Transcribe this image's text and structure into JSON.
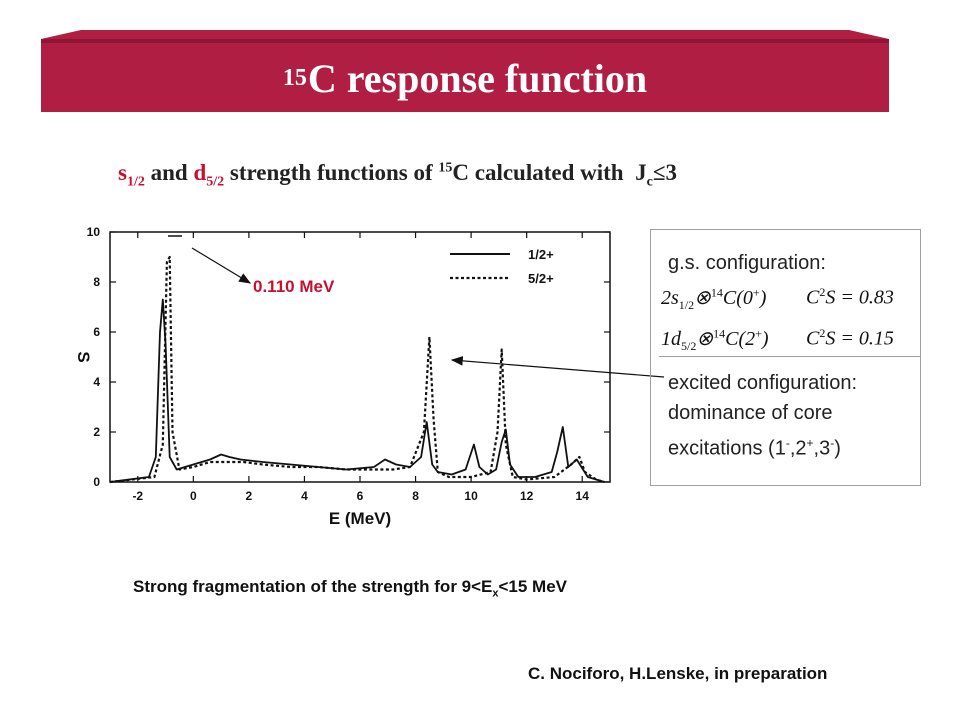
{
  "banner": {
    "superscript": "15",
    "title": "C response function",
    "color": "#b01e43"
  },
  "subtitle": {
    "part1": "s",
    "sub1": "1/2",
    "part2": " and ",
    "part3": "d",
    "sub3": "5/2",
    "part4": " strength functions of ",
    "sup4": "15",
    "part5": "C calculated with  J",
    "sub5": "c",
    "part6": "≤3"
  },
  "annotation": {
    "energy_label": "0.110 MeV"
  },
  "config_box": {
    "gs_heading": "g.s. configuration:",
    "eq1": {
      "lhs": "2s",
      "sub": "1/2",
      "otimes": "⊗",
      "sup": "14",
      "core": "C(0",
      "coresup": "+",
      "close": ")",
      "cs": "C",
      "cssup": "2",
      "csrest": "S = 0.83"
    },
    "eq2": {
      "lhs": "1d",
      "sub": "5/2",
      "otimes": "⊗",
      "sup": "14",
      "core": "C(2",
      "coresup": "+",
      "close": ")",
      "cs": "C",
      "cssup": "2",
      "csrest": "S = 0.15"
    },
    "excited_line1": "excited configuration:",
    "excited_line2": "dominance of core",
    "excited_line3a": "excitations (1",
    "excited_sup1": "-",
    "excited_mid1": ",2",
    "excited_sup2": "+",
    "excited_mid2": ",3",
    "excited_sup3": "-",
    "excited_end": ")"
  },
  "footer": {
    "fragmentation_a": "Strong fragmentation of the strength for 9<E",
    "fragmentation_sub": "x",
    "fragmentation_b": "<15 MeV",
    "credit": "C. Nociforo, H.Lenske, in preparation"
  },
  "chart_data": {
    "type": "line",
    "xlabel": "E (MeV)",
    "ylabel": "S",
    "xlim": [
      -3,
      15
    ],
    "ylim": [
      0,
      10
    ],
    "xticks": [
      -2,
      0,
      2,
      4,
      6,
      8,
      10,
      12,
      14
    ],
    "yticks": [
      0,
      2,
      4,
      6,
      8,
      10
    ],
    "series": [
      {
        "name": "1/2+",
        "style": "solid",
        "x": [
          -3.0,
          -1.6,
          -1.35,
          -1.2,
          -1.1,
          -1.0,
          -0.85,
          -0.6,
          0.0,
          0.6,
          1.0,
          1.3,
          1.7,
          2.5,
          3.5,
          4.5,
          5.5,
          6.5,
          6.9,
          7.3,
          7.8,
          8.2,
          8.4,
          8.6,
          8.8,
          9.3,
          9.8,
          10.1,
          10.3,
          10.6,
          10.9,
          11.1,
          11.25,
          11.4,
          11.7,
          12.3,
          12.9,
          13.1,
          13.3,
          13.5,
          13.8,
          14.2,
          14.8
        ],
        "y": [
          0,
          0.2,
          1.0,
          6.0,
          7.3,
          5.5,
          1.0,
          0.5,
          0.7,
          0.9,
          1.1,
          1.0,
          0.9,
          0.8,
          0.7,
          0.6,
          0.5,
          0.6,
          0.9,
          0.7,
          0.6,
          1.0,
          2.4,
          0.7,
          0.4,
          0.3,
          0.5,
          1.5,
          0.6,
          0.3,
          0.5,
          1.6,
          2.1,
          0.7,
          0.2,
          0.2,
          0.4,
          1.2,
          2.2,
          0.6,
          0.9,
          0.2,
          0
        ]
      },
      {
        "name": "5/2+",
        "style": "dotted",
        "x": [
          -3.0,
          -1.4,
          -1.1,
          -0.95,
          -0.85,
          -0.75,
          -0.5,
          0.0,
          0.6,
          1.2,
          1.8,
          2.5,
          3.5,
          4.5,
          5.5,
          6.5,
          7.2,
          7.8,
          8.3,
          8.5,
          8.65,
          8.8,
          9.2,
          10.0,
          10.7,
          10.95,
          11.1,
          11.25,
          11.5,
          12.0,
          13.0,
          13.6,
          13.9,
          14.1,
          14.5,
          14.8
        ],
        "y": [
          0,
          0.2,
          1.5,
          8.8,
          9.0,
          2.0,
          0.5,
          0.6,
          0.8,
          0.8,
          0.8,
          0.7,
          0.6,
          0.6,
          0.5,
          0.5,
          0.5,
          0.6,
          2.0,
          5.8,
          2.5,
          0.4,
          0.2,
          0.2,
          0.4,
          2.0,
          5.3,
          1.5,
          0.2,
          0.1,
          0.2,
          0.7,
          1.0,
          0.4,
          0.1,
          0
        ]
      }
    ],
    "legend_position": "top-right",
    "line_color": "#111111"
  }
}
